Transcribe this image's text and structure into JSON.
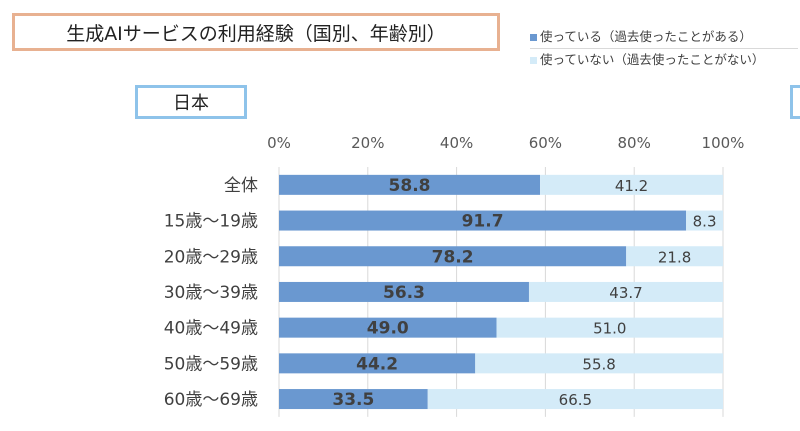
{
  "title": "生成AIサービスの利用経験（国別、年齢別）",
  "country": "日本",
  "legend": [
    {
      "label": "使っている（過去使ったことがある）",
      "color": "#6a98d0"
    },
    {
      "label": "使っていない（過去使ったことがない）",
      "color": "#d4ebf8"
    }
  ],
  "chart_data": {
    "type": "bar",
    "orientation": "horizontal",
    "stacked": true,
    "xlim": [
      0,
      100
    ],
    "x_ticks": [
      "0%",
      "20%",
      "40%",
      "60%",
      "80%",
      "100%"
    ],
    "categories": [
      "全体",
      "15歳～19歳",
      "20歳～29歳",
      "30歳～39歳",
      "40歳～49歳",
      "50歳～59歳",
      "60歳～69歳"
    ],
    "series": [
      {
        "name": "使っている（過去使ったことがある）",
        "color": "#6a98d0",
        "values": [
          58.8,
          91.7,
          78.2,
          56.3,
          49.0,
          44.2,
          33.5
        ]
      },
      {
        "name": "使っていない（過去使ったことがない）",
        "color": "#d4ebf8",
        "values": [
          41.2,
          8.3,
          21.8,
          43.7,
          51.0,
          55.8,
          66.5
        ]
      }
    ],
    "value_labels": [
      [
        "58.8",
        "91.7",
        "78.2",
        "56.3",
        "49.0",
        "44.2",
        "33.5"
      ],
      [
        "41.2",
        "8.3",
        "21.8",
        "43.7",
        "51.0",
        "55.8",
        "66.5"
      ]
    ],
    "legend_position": "top-right",
    "grid": true
  }
}
